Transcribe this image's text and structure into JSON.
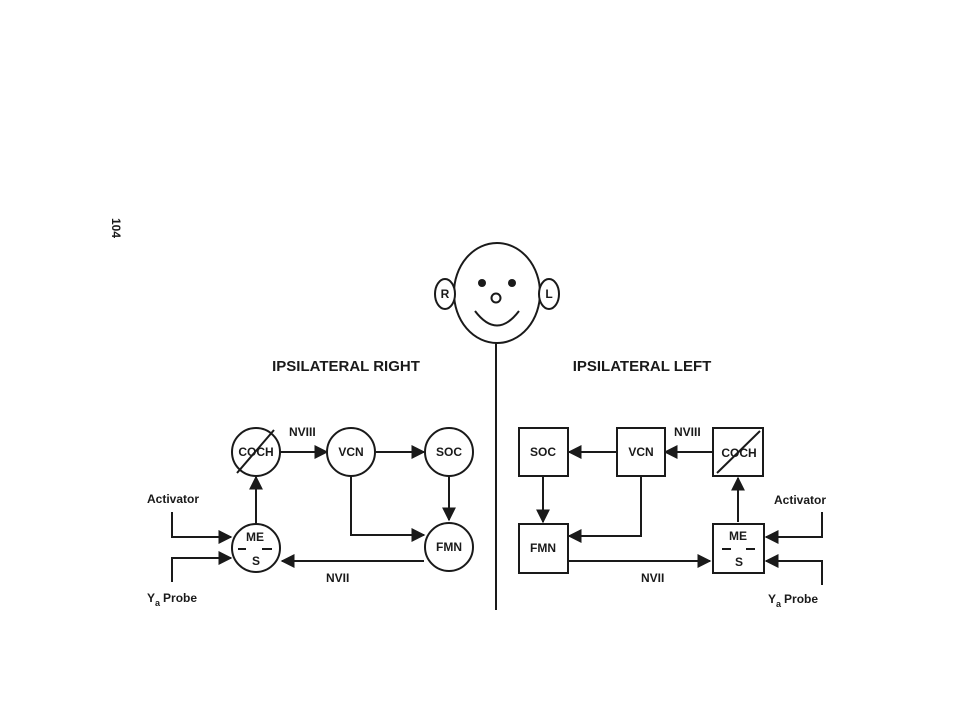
{
  "page_number": "104",
  "face": {
    "right_ear": "R",
    "left_ear": "L"
  },
  "right": {
    "heading": "IPSILATERAL RIGHT",
    "coch": "COCH",
    "vcn": "VCN",
    "soc": "SOC",
    "fmn": "FMN",
    "me": "ME",
    "s": "S",
    "nviii": "NVIII",
    "nvii": "NVII",
    "activator": "Activator",
    "probe_y": "Y",
    "probe_sub": "a",
    "probe_word": "Probe"
  },
  "left": {
    "heading": "IPSILATERAL LEFT",
    "coch": "COCH",
    "vcn": "VCN",
    "soc": "SOC",
    "fmn": "FMN",
    "me": "ME",
    "s": "S",
    "nviii": "NVIII",
    "nvii": "NVII",
    "activator": "Activator",
    "probe_y": "Y",
    "probe_sub": "a",
    "probe_word": "Probe"
  }
}
